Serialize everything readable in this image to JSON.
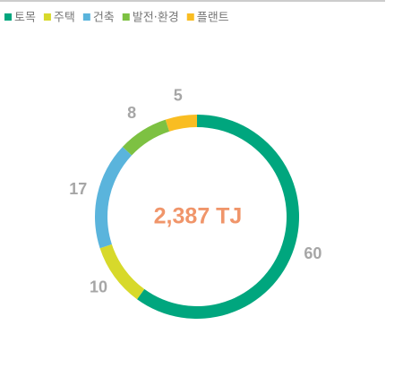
{
  "chart_data": {
    "type": "donut",
    "center_label": "2,387 TJ",
    "categories": [
      "토목",
      "주택",
      "건축",
      "발전·환경",
      "플랜트"
    ],
    "values": [
      60,
      10,
      17,
      8,
      5
    ],
    "colors": [
      "#00a67e",
      "#d7d92b",
      "#5ab4dc",
      "#7dc142",
      "#f9bd22"
    ],
    "legend": "top-left"
  }
}
